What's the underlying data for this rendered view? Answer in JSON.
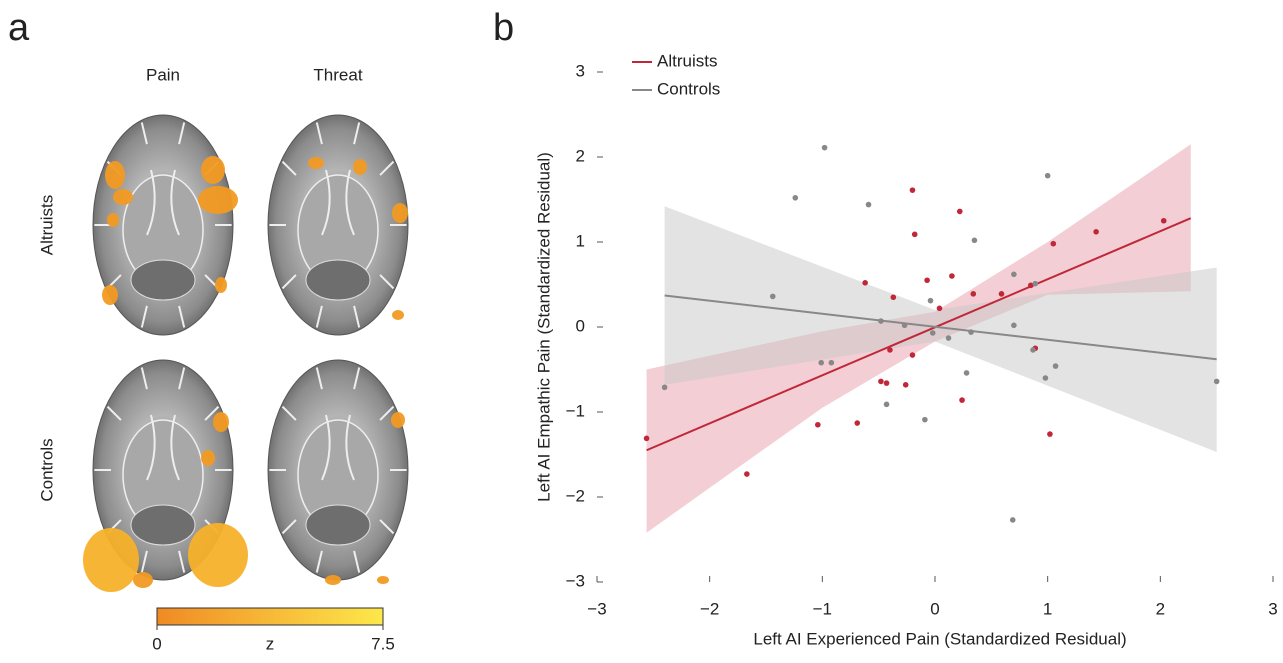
{
  "chart_data": [
    {
      "type": "brain-map",
      "label": "a",
      "columns": [
        "Pain",
        "Threat"
      ],
      "rows": [
        "Altruists",
        "Controls"
      ],
      "colorbar": {
        "label": "z",
        "lim": [
          0,
          7.5
        ],
        "ticks": [
          0,
          7.5
        ],
        "colors": [
          "#f08a24",
          "#fde84a"
        ]
      }
    },
    {
      "type": "scatter",
      "label": "b",
      "xlabel": "Left AI Experienced Pain (Standardized Residual)",
      "ylabel": "Left AI Empathic Pain (Standardized Residual)",
      "xlim": [
        -3,
        3
      ],
      "ylim": [
        -3,
        3
      ],
      "xticks": [
        {
          "value": -3,
          "label": "−3"
        },
        {
          "value": -2,
          "label": "−2"
        },
        {
          "value": -1,
          "label": "−1"
        },
        0,
        1,
        2,
        3
      ],
      "yticks": [
        {
          "value": -3,
          "label": "−3"
        },
        {
          "value": -2,
          "label": "−2"
        },
        {
          "value": -1,
          "label": "−1"
        },
        0,
        1,
        2,
        3
      ],
      "legend": "top-left",
      "series": [
        {
          "name": "Altruists",
          "color": "#c0283a",
          "band_color": "#e8a0ac",
          "x": [
            -2.56,
            -1.67,
            -1.04,
            -0.69,
            -0.2,
            -0.18,
            -0.62,
            -0.37,
            -0.07,
            0.04,
            0.15,
            0.22,
            0.34,
            0.59,
            0.85,
            1.05,
            1.43,
            2.03,
            -0.4,
            -0.2,
            -0.48,
            -0.43,
            -0.26,
            0.24,
            1.02,
            0.89
          ],
          "values": [
            -1.31,
            -1.73,
            -1.15,
            -1.13,
            1.61,
            1.09,
            0.52,
            0.35,
            0.55,
            0.22,
            0.6,
            1.36,
            0.39,
            0.39,
            0.49,
            0.98,
            1.12,
            1.25,
            -0.27,
            -0.33,
            -0.64,
            -0.66,
            -0.68,
            -0.86,
            -1.26,
            -0.25
          ],
          "fit": {
            "x": [
              -2.56,
              2.27
            ],
            "y": [
              -1.45,
              1.28
            ]
          },
          "band": {
            "x": [
              -2.56,
              -1,
              0,
              1,
              2.27
            ],
            "lower": [
              -2.42,
              -0.95,
              -0.17,
              0.38,
              0.42
            ],
            "upper": [
              -0.5,
              -0.05,
              0.18,
              1.0,
              2.15
            ]
          }
        },
        {
          "name": "Controls",
          "color": "#888888",
          "band_color": "#c8c8c8",
          "x": [
            -2.4,
            -1.44,
            -1.24,
            -0.98,
            -0.59,
            -1.01,
            -0.92,
            -0.48,
            -0.43,
            -0.27,
            -0.09,
            -0.04,
            -0.02,
            0.12,
            0.32,
            0.28,
            0.35,
            0.7,
            0.7,
            0.69,
            0.89,
            0.87,
            0.98,
            1.0,
            1.07,
            2.5
          ],
          "values": [
            -0.71,
            0.36,
            1.52,
            2.11,
            1.44,
            -0.42,
            -0.42,
            0.07,
            -0.91,
            0.02,
            -1.09,
            0.31,
            -0.07,
            -0.13,
            -0.06,
            -0.54,
            1.02,
            0.62,
            0.02,
            -2.27,
            0.51,
            -0.27,
            -0.6,
            1.78,
            -0.46,
            -0.64
          ],
          "fit": {
            "x": [
              -2.4,
              2.5
            ],
            "y": [
              0.37,
              -0.38
            ]
          },
          "band": {
            "x": [
              -2.4,
              0,
              2.5
            ],
            "lower": [
              -0.68,
              -0.17,
              -1.47
            ],
            "upper": [
              1.42,
              0.2,
              0.7
            ]
          }
        }
      ]
    }
  ]
}
